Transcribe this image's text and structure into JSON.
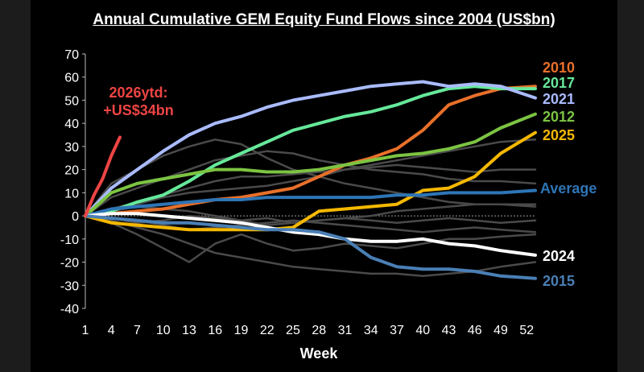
{
  "chart_data": {
    "type": "line",
    "title": "Annual  Cumulative GEM Equity Fund Flows  since 2004 (US$bn)",
    "xlabel": "Week",
    "ylabel": "",
    "xlim": [
      1,
      53
    ],
    "ylim": [
      -40,
      70
    ],
    "yticks": [
      -40,
      -30,
      -20,
      -10,
      0,
      10,
      20,
      30,
      40,
      50,
      60,
      70
    ],
    "xticks": [
      1,
      4,
      7,
      10,
      13,
      16,
      19,
      22,
      25,
      28,
      31,
      34,
      37,
      40,
      43,
      46,
      49,
      52
    ],
    "annotation": {
      "lines": [
        "2026ytd:",
        "+US$34bn"
      ],
      "color": "#ee4444"
    },
    "series": [
      {
        "name": "",
        "color": "#4a4a4a",
        "x": [
          1,
          4,
          7,
          10,
          13,
          16,
          19,
          22,
          25,
          28,
          31,
          34,
          37,
          40,
          43,
          46,
          49,
          53
        ],
        "y": [
          0,
          3,
          6,
          9,
          12,
          15,
          17,
          17,
          18,
          19,
          20,
          21,
          22,
          21,
          20,
          19,
          20,
          20
        ]
      },
      {
        "name": "",
        "color": "#4a4a4a",
        "x": [
          1,
          4,
          7,
          10,
          13,
          16,
          19,
          22,
          25,
          28,
          31,
          34,
          37,
          40,
          43,
          46,
          49,
          53
        ],
        "y": [
          0,
          14,
          20,
          26,
          30,
          33,
          31,
          25,
          20,
          17,
          14,
          12,
          10,
          8,
          6,
          5,
          5,
          5
        ]
      },
      {
        "name": "",
        "color": "#4a4a4a",
        "x": [
          1,
          4,
          7,
          10,
          13,
          16,
          19,
          22,
          25,
          28,
          31,
          34,
          37,
          40,
          43,
          46,
          49,
          53
        ],
        "y": [
          0,
          8,
          12,
          16,
          20,
          24,
          26,
          28,
          27,
          24,
          22,
          20,
          19,
          18,
          16,
          15,
          15,
          14
        ]
      },
      {
        "name": "",
        "color": "#4a4a4a",
        "x": [
          1,
          4,
          7,
          10,
          13,
          16,
          19,
          22,
          25,
          28,
          31,
          34,
          37,
          40,
          43,
          46,
          49,
          53
        ],
        "y": [
          0,
          -3,
          -8,
          -14,
          -20,
          -12,
          -8,
          -12,
          -15,
          -14,
          -12,
          -13,
          -14,
          -12,
          -10,
          -10,
          -9,
          -8
        ]
      },
      {
        "name": "",
        "color": "#4a4a4a",
        "x": [
          1,
          4,
          7,
          10,
          13,
          16,
          19,
          22,
          25,
          28,
          31,
          34,
          37,
          40,
          43,
          46,
          49,
          53
        ],
        "y": [
          0,
          -2,
          -5,
          -8,
          -12,
          -16,
          -18,
          -20,
          -22,
          -23,
          -24,
          -25,
          -25,
          -26,
          -25,
          -24,
          -22,
          -20
        ]
      },
      {
        "name": "",
        "color": "#4a4a4a",
        "x": [
          1,
          4,
          7,
          10,
          13,
          16,
          19,
          22,
          25,
          28,
          31,
          34,
          37,
          40,
          43,
          46,
          49,
          53
        ],
        "y": [
          0,
          2,
          4,
          3,
          2,
          0,
          -2,
          -4,
          -3,
          -2,
          -1,
          0,
          2,
          3,
          4,
          5,
          5,
          4
        ]
      },
      {
        "name": "",
        "color": "#4a4a4a",
        "x": [
          1,
          4,
          7,
          10,
          13,
          16,
          19,
          22,
          25,
          28,
          31,
          34,
          37,
          40,
          43,
          46,
          49,
          53
        ],
        "y": [
          0,
          -1,
          -3,
          -2,
          0,
          -1,
          -2,
          -1,
          -3,
          -2,
          -1,
          -2,
          -3,
          -2,
          -1,
          -2,
          -3,
          -2
        ]
      },
      {
        "name": "",
        "color": "#4a4a4a",
        "x": [
          1,
          4,
          7,
          10,
          13,
          16,
          19,
          22,
          25,
          28,
          31,
          34,
          37,
          40,
          43,
          46,
          49,
          53
        ],
        "y": [
          0,
          2,
          5,
          8,
          10,
          11,
          12,
          13,
          15,
          17,
          20,
          22,
          24,
          26,
          28,
          30,
          32,
          33
        ]
      },
      {
        "name": "",
        "color": "#4a4a4a",
        "x": [
          1,
          4,
          7,
          10,
          13,
          16,
          19,
          22,
          25,
          28,
          31,
          34,
          37,
          40,
          43,
          46,
          49,
          53
        ],
        "y": [
          0,
          -1,
          -2,
          -4,
          -6,
          -5,
          -4,
          -3,
          -2,
          -3,
          -4,
          -5,
          -6,
          -7,
          -6,
          -5,
          -6,
          -7
        ]
      },
      {
        "name": "2010",
        "color": "#e8702a",
        "x": [
          1,
          4,
          7,
          10,
          13,
          16,
          19,
          22,
          25,
          28,
          31,
          34,
          37,
          40,
          43,
          46,
          49,
          53
        ],
        "y": [
          0,
          1,
          2,
          3,
          5,
          7,
          8,
          10,
          12,
          17,
          22,
          25,
          29,
          37,
          48,
          52,
          55,
          56
        ]
      },
      {
        "name": "2017",
        "color": "#66e89a",
        "x": [
          1,
          4,
          7,
          10,
          13,
          16,
          19,
          22,
          25,
          28,
          31,
          34,
          37,
          40,
          43,
          46,
          49,
          53
        ],
        "y": [
          0,
          2,
          6,
          9,
          15,
          22,
          27,
          32,
          37,
          40,
          43,
          45,
          48,
          52,
          55,
          56,
          55,
          55
        ]
      },
      {
        "name": "2021",
        "color": "#aabbff",
        "x": [
          1,
          4,
          7,
          10,
          13,
          16,
          19,
          22,
          25,
          28,
          31,
          34,
          37,
          40,
          43,
          46,
          49,
          53
        ],
        "y": [
          0,
          12,
          20,
          28,
          35,
          40,
          43,
          47,
          50,
          52,
          54,
          56,
          57,
          58,
          56,
          57,
          56,
          51
        ]
      },
      {
        "name": "2012",
        "color": "#7cc442",
        "x": [
          1,
          4,
          7,
          10,
          13,
          16,
          19,
          22,
          25,
          28,
          31,
          34,
          37,
          40,
          43,
          46,
          49,
          53
        ],
        "y": [
          0,
          10,
          14,
          16,
          18,
          20,
          20,
          19,
          19,
          20,
          22,
          24,
          26,
          27,
          29,
          32,
          38,
          44
        ]
      },
      {
        "name": "2025",
        "color": "#f5b800",
        "x": [
          1,
          4,
          7,
          10,
          13,
          16,
          19,
          22,
          25,
          28,
          31,
          34,
          37,
          40,
          43,
          46,
          49,
          53
        ],
        "y": [
          0,
          -3,
          -4,
          -5,
          -6,
          -6,
          -6,
          -6,
          -5,
          2,
          3,
          4,
          5,
          11,
          12,
          17,
          27,
          36
        ]
      },
      {
        "name": "Average",
        "color": "#2e75b6",
        "x": [
          1,
          4,
          7,
          10,
          13,
          16,
          19,
          22,
          25,
          28,
          31,
          34,
          37,
          40,
          43,
          46,
          49,
          53
        ],
        "y": [
          0,
          3,
          4,
          5,
          6,
          7,
          7,
          8,
          8,
          8,
          8,
          8,
          9,
          9,
          10,
          10,
          10,
          11
        ]
      },
      {
        "name": "2024",
        "color": "#ffffff",
        "x": [
          1,
          4,
          7,
          10,
          13,
          16,
          19,
          22,
          25,
          28,
          31,
          34,
          37,
          40,
          43,
          46,
          49,
          53
        ],
        "y": [
          0,
          1,
          1,
          0,
          -1,
          -2,
          -3,
          -5,
          -7,
          -8,
          -10,
          -11,
          -11,
          -10,
          -12,
          -13,
          -15,
          -17
        ]
      },
      {
        "name": "2015",
        "color": "#4a7fb5",
        "x": [
          1,
          4,
          7,
          10,
          13,
          16,
          19,
          22,
          25,
          28,
          31,
          34,
          37,
          40,
          43,
          46,
          49,
          53
        ],
        "y": [
          0,
          -1,
          -2,
          -3,
          -3,
          -4,
          -5,
          -6,
          -6,
          -7,
          -10,
          -18,
          -22,
          -23,
          -23,
          -24,
          -26,
          -27
        ]
      },
      {
        "name": "2026ytd",
        "color": "#ee4444",
        "x": [
          1,
          2,
          3,
          4,
          5
        ],
        "y": [
          0,
          9,
          16,
          26,
          34
        ]
      }
    ]
  }
}
